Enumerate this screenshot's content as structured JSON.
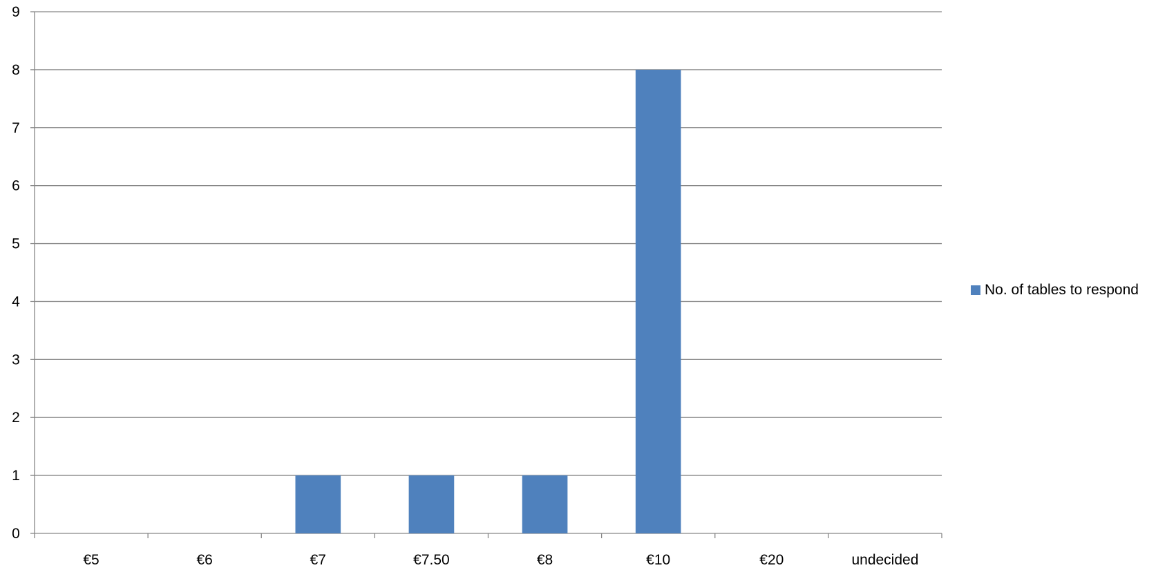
{
  "chart_data": {
    "type": "bar",
    "categories": [
      "€5",
      "€6",
      "€7",
      "€7.50",
      "€8",
      "€10",
      "€20",
      "undecided"
    ],
    "series": [
      {
        "name": "No. of tables to respond",
        "values": [
          0,
          0,
          1,
          1,
          1,
          8,
          0,
          0
        ],
        "color": "#4F81BD"
      }
    ],
    "ylim": [
      0,
      9
    ],
    "yticks": [
      0,
      1,
      2,
      3,
      4,
      5,
      6,
      7,
      8,
      9
    ],
    "grid": true,
    "legend_position": "right",
    "title": "",
    "xlabel": "",
    "ylabel": ""
  }
}
